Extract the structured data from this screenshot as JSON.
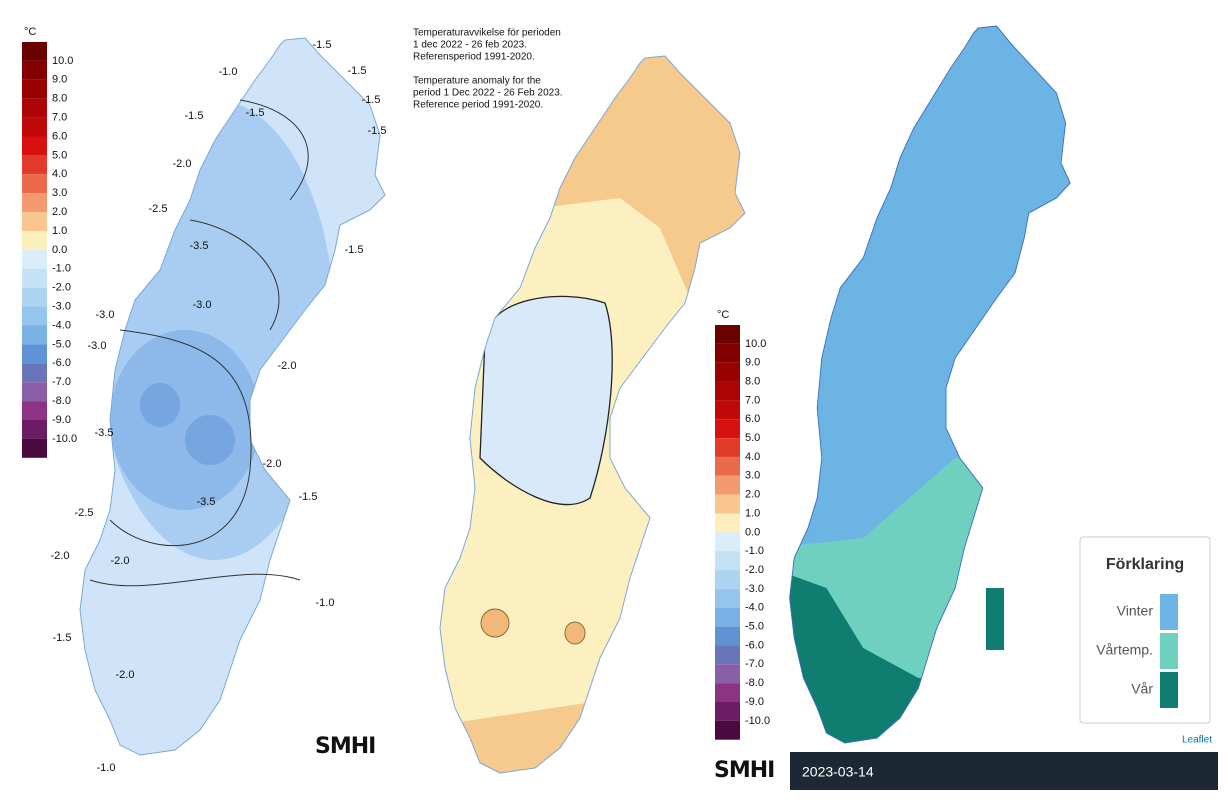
{
  "temperature_scale": {
    "unit": "°C",
    "labels": [
      "10.0",
      "9.0",
      "8.0",
      "7.0",
      "6.0",
      "5.0",
      "4.0",
      "3.0",
      "2.0",
      "1.0",
      "0.0",
      "-1.0",
      "-2.0",
      "-3.0",
      "-4.0",
      "-5.0",
      "-6.0",
      "-7.0",
      "-8.0",
      "-9.0",
      "-10.0"
    ],
    "colors": [
      "#6b0000",
      "#820000",
      "#990000",
      "#ad0505",
      "#c00a0a",
      "#d81010",
      "#e33b2a",
      "#ec6a4c",
      "#f39a70",
      "#f8c68e",
      "#fcefbe",
      "#dcedfa",
      "#c4e1f6",
      "#acd4f1",
      "#94c5ec",
      "#7ab2e5",
      "#5f93d6",
      "#6a74b8",
      "#8a5fa8",
      "#8c3384",
      "#6c1c63",
      "#4a0a3f"
    ]
  },
  "left_map": {
    "contour_labels": [
      "-1.5",
      "-1.0",
      "-1.5",
      "-1.5",
      "-1.5",
      "-1.5",
      "-1.5",
      "-2.0",
      "-2.5",
      "-1.5",
      "-3.5",
      "-3.0",
      "-3.0",
      "-3.0",
      "-2.0",
      "-3.5",
      "-2.0",
      "-1.5",
      "-3.5",
      "-2.5",
      "-2.0",
      "-2.0",
      "-1.0",
      "-1.5",
      "-2.0",
      "-1.0"
    ],
    "logo": "SMHI"
  },
  "middle_map": {
    "caption": [
      "Temperaturavvikelse för perioden",
      "1 dec 2022 - 26 feb 2023.",
      "Referensperiod 1991-2020.",
      "Temperature anomaly for the",
      "period 1 Dec 2022 - 26 Feb 2023.",
      "Reference period 1991-2020."
    ],
    "logo": "SMHI"
  },
  "right_map": {
    "legend_title": "Förklaring",
    "legend_items": [
      {
        "label": "Vinter",
        "color": "#6cb4e4"
      },
      {
        "label": "Vårtemp.",
        "color": "#6fd0c0"
      },
      {
        "label": "Vår",
        "color": "#0f7d70"
      }
    ],
    "attribution": "Leaflet",
    "date": "2023-03-14"
  }
}
